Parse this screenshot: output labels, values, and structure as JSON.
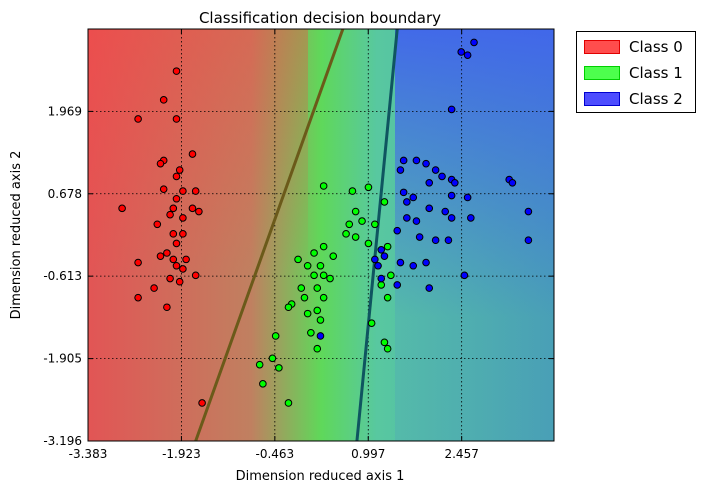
{
  "chart_data": {
    "type": "scatter",
    "title": "Classification decision boundary",
    "xlabel": "Dimension reduced axis 1",
    "ylabel": "Dimension reduced axis 2",
    "xlim": [
      -3.383,
      3.9
    ],
    "ylim": [
      -3.196,
      3.26
    ],
    "xticks": [
      "-3.383",
      "-1.923",
      "-0.463",
      "0.997",
      "2.457"
    ],
    "yticks": [
      "-3.196",
      "-1.905",
      "-0.613",
      "0.678",
      "1.969"
    ],
    "grid": true,
    "legend_position": "outside-top-right",
    "background": "decision regions shaded by class (red / green / blue)",
    "boundaries": [
      {
        "name": "boundary-0-1",
        "from": [
          -1.7,
          -3.196
        ],
        "to": [
          0.6,
          3.26
        ],
        "color": "#6b5a1a"
      },
      {
        "name": "boundary-1-2",
        "from": [
          0.82,
          -3.196
        ],
        "to": [
          1.45,
          3.26
        ],
        "color": "#0f5560"
      }
    ],
    "series": [
      {
        "name": "Class 0",
        "color": "#ff0000",
        "legend_color": "#ff4d4d",
        "points": [
          [
            -2.0,
            2.6
          ],
          [
            -2.2,
            2.15
          ],
          [
            -2.6,
            1.85
          ],
          [
            -2.0,
            1.85
          ],
          [
            -2.2,
            1.2
          ],
          [
            -2.25,
            1.15
          ],
          [
            -1.75,
            1.3
          ],
          [
            -1.95,
            1.05
          ],
          [
            -2.0,
            0.95
          ],
          [
            -1.9,
            0.72
          ],
          [
            -2.2,
            0.75
          ],
          [
            -2.0,
            0.6
          ],
          [
            -1.7,
            0.72
          ],
          [
            -2.05,
            0.45
          ],
          [
            -2.85,
            0.45
          ],
          [
            -2.1,
            0.35
          ],
          [
            -1.75,
            0.45
          ],
          [
            -1.65,
            0.4
          ],
          [
            -1.9,
            0.3
          ],
          [
            -2.3,
            0.2
          ],
          [
            -2.05,
            0.05
          ],
          [
            -1.9,
            0.05
          ],
          [
            -2.0,
            -0.1
          ],
          [
            -2.15,
            -0.25
          ],
          [
            -2.05,
            -0.35
          ],
          [
            -2.25,
            -0.3
          ],
          [
            -2.6,
            -0.4
          ],
          [
            -2.0,
            -0.45
          ],
          [
            -1.85,
            -0.35
          ],
          [
            -1.9,
            -0.5
          ],
          [
            -1.7,
            -0.6
          ],
          [
            -2.1,
            -0.65
          ],
          [
            -1.95,
            -0.7
          ],
          [
            -2.35,
            -0.8
          ],
          [
            -2.6,
            -0.95
          ],
          [
            -2.15,
            -1.1
          ],
          [
            -1.6,
            -2.6
          ]
        ]
      },
      {
        "name": "Class 1",
        "color": "#00ff00",
        "legend_color": "#4dff4d",
        "points": [
          [
            0.3,
            0.8
          ],
          [
            0.75,
            0.72
          ],
          [
            1.0,
            0.78
          ],
          [
            0.8,
            0.4
          ],
          [
            1.25,
            0.55
          ],
          [
            0.7,
            0.2
          ],
          [
            0.9,
            0.25
          ],
          [
            1.1,
            0.2
          ],
          [
            0.65,
            0.05
          ],
          [
            0.8,
            0.0
          ],
          [
            1.0,
            -0.1
          ],
          [
            0.3,
            -0.15
          ],
          [
            0.15,
            -0.25
          ],
          [
            -0.1,
            -0.35
          ],
          [
            0.05,
            -0.45
          ],
          [
            0.25,
            -0.45
          ],
          [
            0.45,
            -0.3
          ],
          [
            0.3,
            -0.6
          ],
          [
            0.4,
            -0.65
          ],
          [
            0.15,
            -0.6
          ],
          [
            -0.05,
            -0.8
          ],
          [
            0.2,
            -0.8
          ],
          [
            0.0,
            -0.95
          ],
          [
            0.3,
            -0.95
          ],
          [
            -0.2,
            -1.05
          ],
          [
            -0.25,
            -1.1
          ],
          [
            0.05,
            -1.2
          ],
          [
            0.25,
            -1.3
          ],
          [
            1.3,
            -0.15
          ],
          [
            1.35,
            -0.6
          ],
          [
            1.2,
            -0.75
          ],
          [
            1.3,
            -0.95
          ],
          [
            0.2,
            -1.15
          ],
          [
            -0.45,
            -1.55
          ],
          [
            0.1,
            -1.5
          ],
          [
            0.2,
            -1.75
          ],
          [
            1.05,
            -1.35
          ],
          [
            1.25,
            -1.65
          ],
          [
            1.3,
            -1.75
          ],
          [
            -0.5,
            -1.9
          ],
          [
            -0.4,
            -2.05
          ],
          [
            -0.7,
            -2.0
          ],
          [
            -0.65,
            -2.3
          ],
          [
            -0.25,
            -2.6
          ]
        ]
      },
      {
        "name": "Class 2",
        "color": "#0000ff",
        "legend_color": "#4d4dff",
        "points": [
          [
            2.65,
            3.05
          ],
          [
            2.45,
            2.9
          ],
          [
            2.55,
            2.85
          ],
          [
            2.3,
            2.0
          ],
          [
            1.55,
            1.2
          ],
          [
            1.75,
            1.2
          ],
          [
            1.9,
            1.15
          ],
          [
            1.5,
            1.05
          ],
          [
            2.05,
            1.05
          ],
          [
            2.15,
            0.95
          ],
          [
            2.3,
            0.9
          ],
          [
            2.35,
            0.85
          ],
          [
            1.95,
            0.85
          ],
          [
            3.2,
            0.9
          ],
          [
            3.25,
            0.85
          ],
          [
            1.55,
            0.7
          ],
          [
            2.3,
            0.65
          ],
          [
            2.55,
            0.62
          ],
          [
            1.7,
            0.62
          ],
          [
            1.6,
            0.55
          ],
          [
            1.95,
            0.45
          ],
          [
            2.2,
            0.4
          ],
          [
            3.5,
            0.4
          ],
          [
            2.6,
            0.3
          ],
          [
            2.3,
            0.3
          ],
          [
            1.75,
            0.25
          ],
          [
            1.6,
            0.3
          ],
          [
            1.45,
            0.1
          ],
          [
            1.8,
            0.0
          ],
          [
            2.05,
            -0.05
          ],
          [
            2.25,
            -0.05
          ],
          [
            3.5,
            -0.05
          ],
          [
            1.2,
            -0.2
          ],
          [
            1.25,
            -0.3
          ],
          [
            1.5,
            -0.4
          ],
          [
            1.7,
            -0.45
          ],
          [
            1.9,
            -0.4
          ],
          [
            1.1,
            -0.35
          ],
          [
            1.15,
            -0.45
          ],
          [
            1.2,
            -0.65
          ],
          [
            1.45,
            -0.75
          ],
          [
            1.95,
            -0.8
          ],
          [
            2.5,
            -0.6
          ],
          [
            0.25,
            -1.55
          ]
        ]
      }
    ]
  }
}
